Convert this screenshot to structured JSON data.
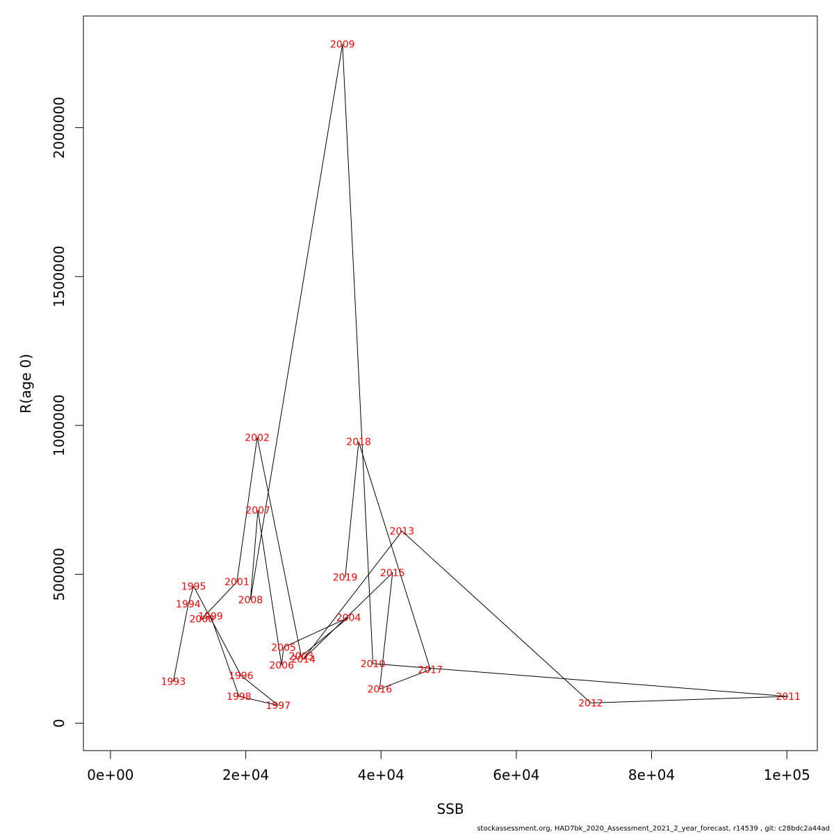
{
  "footer": "stockassessment.org, HAD7bk_2020_Assessment_2021_2_year_forecast, r14539 , git: c28bdc2a44ad",
  "chart_data": {
    "type": "line",
    "xlabel": "SSB",
    "ylabel": "R(age 0)",
    "xlim": [
      -4000,
      104500
    ],
    "ylim": [
      -92000,
      2375000
    ],
    "x_ticks": [
      0,
      20000,
      40000,
      60000,
      80000,
      100000
    ],
    "x_tick_labels": [
      "0e+00",
      "2e+04",
      "4e+04",
      "6e+04",
      "8e+04",
      "1e+05"
    ],
    "y_ticks": [
      0,
      500000,
      1000000,
      1500000,
      2000000
    ],
    "y_tick_labels": [
      "0",
      "500000",
      "1000000",
      "1500000",
      "2000000"
    ],
    "grid": false,
    "point_label_color": "#ff0000",
    "line_color": "#000000",
    "points": [
      {
        "label": "1993",
        "x": 9300,
        "y": 140000
      },
      {
        "label": "1994",
        "x": 11500,
        "y": 400000
      },
      {
        "label": "1995",
        "x": 12300,
        "y": 460000
      },
      {
        "label": "1996",
        "x": 19300,
        "y": 160000
      },
      {
        "label": "1997",
        "x": 24800,
        "y": 60000
      },
      {
        "label": "1998",
        "x": 19000,
        "y": 90000
      },
      {
        "label": "1999",
        "x": 14800,
        "y": 360000
      },
      {
        "label": "2000",
        "x": 13500,
        "y": 350000
      },
      {
        "label": "2001",
        "x": 18700,
        "y": 475000
      },
      {
        "label": "2002",
        "x": 21700,
        "y": 960000
      },
      {
        "label": "2003",
        "x": 28200,
        "y": 225000
      },
      {
        "label": "2004",
        "x": 35200,
        "y": 355000
      },
      {
        "label": "2005",
        "x": 25600,
        "y": 255000
      },
      {
        "label": "2006",
        "x": 25300,
        "y": 195000
      },
      {
        "label": "2007",
        "x": 21800,
        "y": 715000
      },
      {
        "label": "2008",
        "x": 20700,
        "y": 415000
      },
      {
        "label": "2009",
        "x": 34300,
        "y": 2280000
      },
      {
        "label": "2010",
        "x": 38800,
        "y": 200000
      },
      {
        "label": "2011",
        "x": 100200,
        "y": 90000
      },
      {
        "label": "2012",
        "x": 71000,
        "y": 68000
      },
      {
        "label": "2013",
        "x": 43100,
        "y": 645000
      },
      {
        "label": "2014",
        "x": 28500,
        "y": 215000
      },
      {
        "label": "2015",
        "x": 41700,
        "y": 505000
      },
      {
        "label": "2016",
        "x": 39800,
        "y": 115000
      },
      {
        "label": "2017",
        "x": 47300,
        "y": 180000
      },
      {
        "label": "2018",
        "x": 36700,
        "y": 945000
      },
      {
        "label": "2019",
        "x": 34700,
        "y": 490000
      }
    ]
  }
}
